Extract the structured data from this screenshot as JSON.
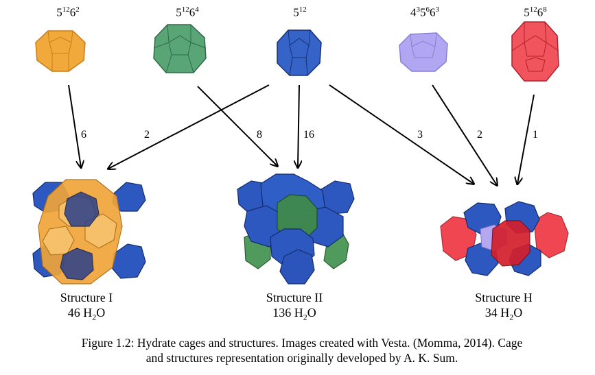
{
  "cages": [
    {
      "base1": "5",
      "exp1": "12",
      "base2": "6",
      "exp2": "2",
      "color": "#f2a93b"
    },
    {
      "base1": "5",
      "exp1": "12",
      "base2": "6",
      "exp2": "4",
      "color": "#4f9a6a"
    },
    {
      "base1": "5",
      "exp1": "12",
      "base2": "",
      "exp2": "",
      "color": "#2f5cc2"
    },
    {
      "base1": "4",
      "exp1": "3",
      "base2": "5",
      "exp2": "6",
      "base3": "6",
      "exp3": "3",
      "color": "#a99ef0"
    },
    {
      "base1": "5",
      "exp1": "12",
      "base2": "6",
      "exp2": "8",
      "color": "#ef3f4a"
    }
  ],
  "counts": [
    "6",
    "2",
    "8",
    "16",
    "3",
    "2",
    "1"
  ],
  "structures": [
    {
      "name": "Structure I",
      "water_prefix": "46 H",
      "water_sub": "2",
      "water_suffix": "O"
    },
    {
      "name": "Structure II",
      "water_prefix": "136 H",
      "water_sub": "2",
      "water_suffix": "O"
    },
    {
      "name": "Structure H",
      "water_prefix": "34 H",
      "water_sub": "2",
      "water_suffix": "O"
    }
  ],
  "caption": {
    "line1": "Figure 1.2: Hydrate cages and structures. Images created with Vesta. (Momma, 2014). Cage",
    "line2": "and structures representation originally developed by A. K. Sum."
  },
  "colors": {
    "orange": "#f2a93b",
    "green": "#4f9a6a",
    "blue": "#2f5cc2",
    "purple": "#a99ef0",
    "red": "#ef3f4a"
  }
}
